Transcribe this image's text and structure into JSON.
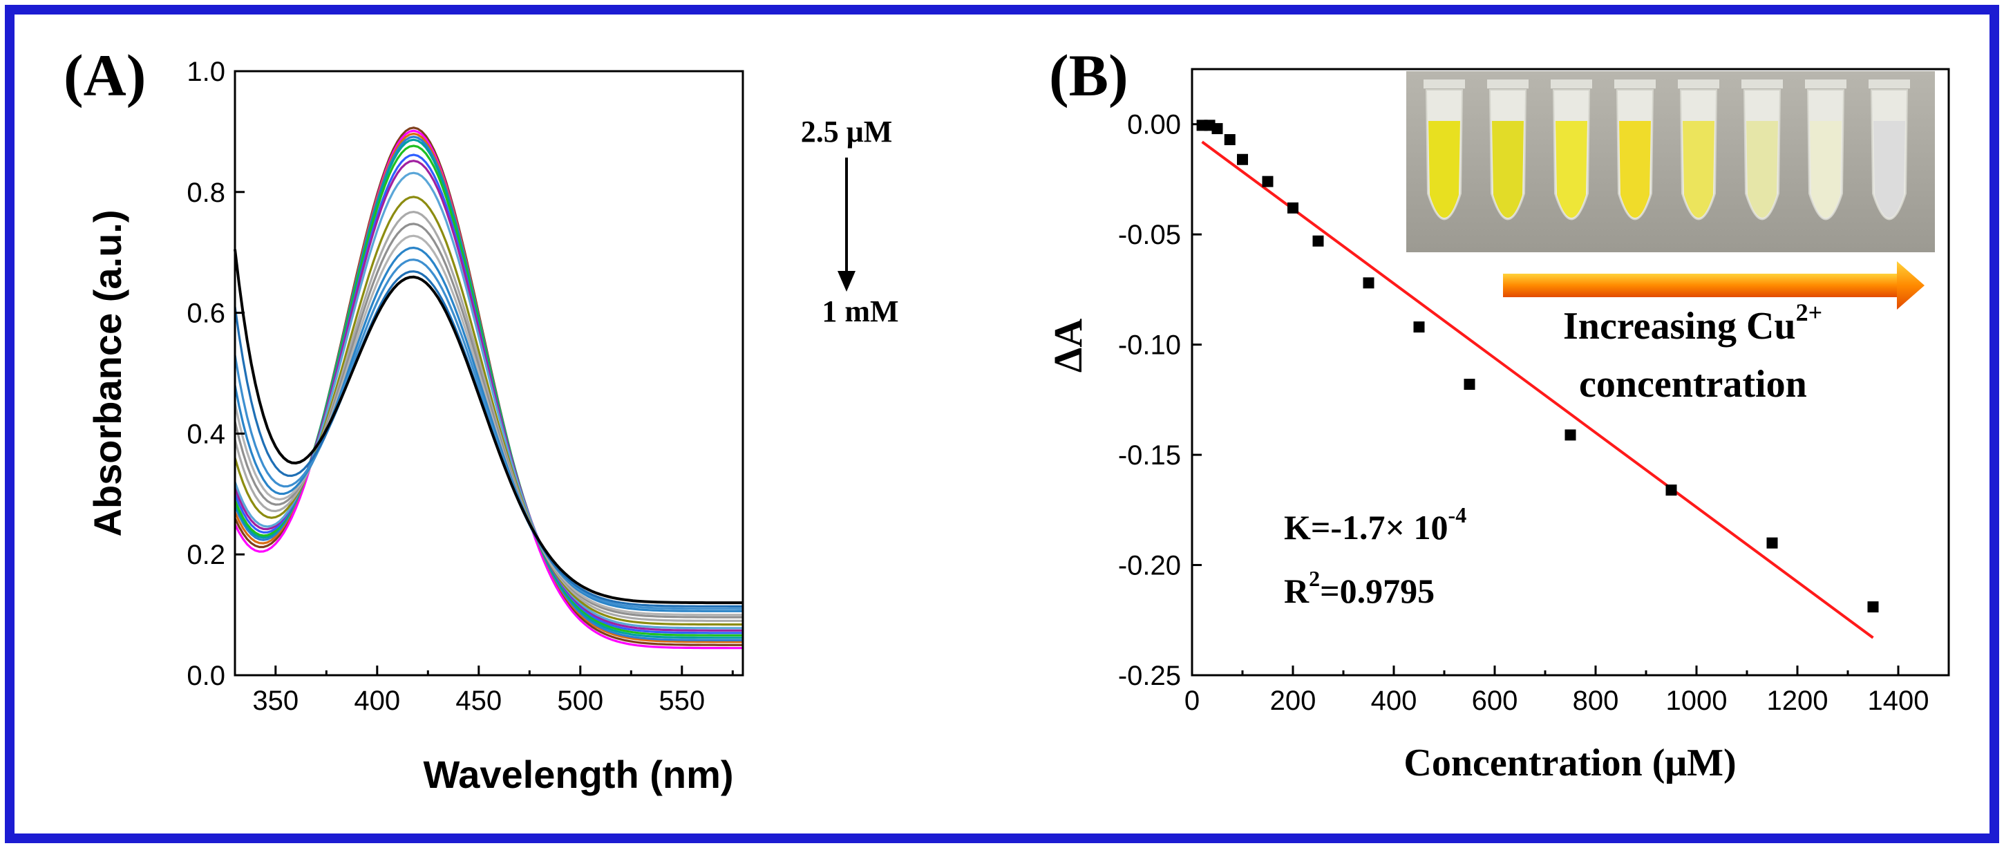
{
  "colors": {
    "frame": "#1c1cd2",
    "fit_line": "#ff1a1a",
    "marker": "#000000"
  },
  "chart_data": [
    {
      "panel": "(A)",
      "type": "line",
      "title": "",
      "xlabel": "Wavelength (nm)",
      "ylabel": "Absorbance (a.u.)",
      "xlim": [
        330,
        580
      ],
      "ylim": [
        0.0,
        1.0
      ],
      "xticks": [
        "350",
        "400",
        "450",
        "500",
        "550"
      ],
      "yticks": [
        "0.0",
        "0.2",
        "0.4",
        "0.6",
        "0.8",
        "1.0"
      ],
      "annotation_top": "2.5 μM",
      "annotation_bottom": "1 mM",
      "annotation_arrow": "down",
      "series": [
        {
          "name": "s1",
          "color": "#7f3f1c",
          "start": 0.26,
          "peak": 0.905,
          "tail": 0.05
        },
        {
          "name": "s2",
          "color": "#ff00ff",
          "start": 0.25,
          "peak": 0.9,
          "tail": 0.045
        },
        {
          "name": "s3",
          "color": "#d96c14",
          "start": 0.27,
          "peak": 0.895,
          "tail": 0.055
        },
        {
          "name": "s4",
          "color": "#2a7fd4",
          "start": 0.28,
          "peak": 0.89,
          "tail": 0.058
        },
        {
          "name": "s5",
          "color": "#00a0a0",
          "start": 0.285,
          "peak": 0.885,
          "tail": 0.062
        },
        {
          "name": "s6",
          "color": "#20c020",
          "start": 0.29,
          "peak": 0.875,
          "tail": 0.066
        },
        {
          "name": "s7",
          "color": "#3060ff",
          "start": 0.3,
          "peak": 0.86,
          "tail": 0.07
        },
        {
          "name": "s8",
          "color": "#a020a0",
          "start": 0.31,
          "peak": 0.85,
          "tail": 0.074
        },
        {
          "name": "s9",
          "color": "#5aa6d8",
          "start": 0.32,
          "peak": 0.83,
          "tail": 0.078
        },
        {
          "name": "s10",
          "color": "#8c8c10",
          "start": 0.36,
          "peak": 0.79,
          "tail": 0.084
        },
        {
          "name": "s11",
          "color": "#aaaaaa",
          "start": 0.39,
          "peak": 0.765,
          "tail": 0.09
        },
        {
          "name": "s12",
          "color": "#909090",
          "start": 0.42,
          "peak": 0.745,
          "tail": 0.096
        },
        {
          "name": "s13",
          "color": "#b4b4b4",
          "start": 0.45,
          "peak": 0.725,
          "tail": 0.1
        },
        {
          "name": "s14",
          "color": "#2a84c8",
          "start": 0.48,
          "peak": 0.705,
          "tail": 0.106
        },
        {
          "name": "s15",
          "color": "#3d8fd0",
          "start": 0.53,
          "peak": 0.685,
          "tail": 0.11
        },
        {
          "name": "s16",
          "color": "#1f6fb5",
          "start": 0.61,
          "peak": 0.665,
          "tail": 0.114
        },
        {
          "name": "s17",
          "color": "#000000",
          "start": 0.705,
          "peak": 0.655,
          "tail": 0.12
        }
      ]
    },
    {
      "panel": "(B)",
      "type": "scatter",
      "title": "",
      "xlabel": "Concentration (μM)",
      "ylabel": "ΔA",
      "xlim": [
        0,
        1500
      ],
      "ylim": [
        -0.25,
        0.025
      ],
      "xticks": [
        "0",
        "200",
        "400",
        "600",
        "800",
        "1000",
        "1200",
        "1400"
      ],
      "yticks": [
        "0.00",
        "-0.05",
        "-0.10",
        "-0.15",
        "-0.20",
        "-0.25"
      ],
      "points": [
        {
          "x": 20,
          "y": -0.0005
        },
        {
          "x": 35,
          "y": -0.0005
        },
        {
          "x": 50,
          "y": -0.002
        },
        {
          "x": 75,
          "y": -0.007
        },
        {
          "x": 100,
          "y": -0.016
        },
        {
          "x": 150,
          "y": -0.026
        },
        {
          "x": 200,
          "y": -0.038
        },
        {
          "x": 250,
          "y": -0.053
        },
        {
          "x": 350,
          "y": -0.072
        },
        {
          "x": 450,
          "y": -0.092
        },
        {
          "x": 550,
          "y": -0.118
        },
        {
          "x": 750,
          "y": -0.141
        },
        {
          "x": 950,
          "y": -0.166
        },
        {
          "x": 1150,
          "y": -0.19
        },
        {
          "x": 1350,
          "y": -0.219
        }
      ],
      "fit_line": {
        "x": [
          20,
          1350
        ],
        "y": [
          -0.008,
          -0.233
        ]
      },
      "slope_text": "K=-1.7×  10",
      "slope_exp": "-4",
      "r2_prefix": "R",
      "r2_sup": "2",
      "r2_value": "=0.9795",
      "inset_caption_line1": "Increasing Cu",
      "inset_caption_sup": "2+",
      "inset_caption_line2": "concentration",
      "inset_tubes": [
        {
          "fill": "#e8e020"
        },
        {
          "fill": "#e2dc28"
        },
        {
          "fill": "#eee638"
        },
        {
          "fill": "#f0dc2a"
        },
        {
          "fill": "#ece45c"
        },
        {
          "fill": "#e6e6a8"
        },
        {
          "fill": "#ececd0"
        },
        {
          "fill": "#dcdcdc"
        }
      ]
    }
  ]
}
